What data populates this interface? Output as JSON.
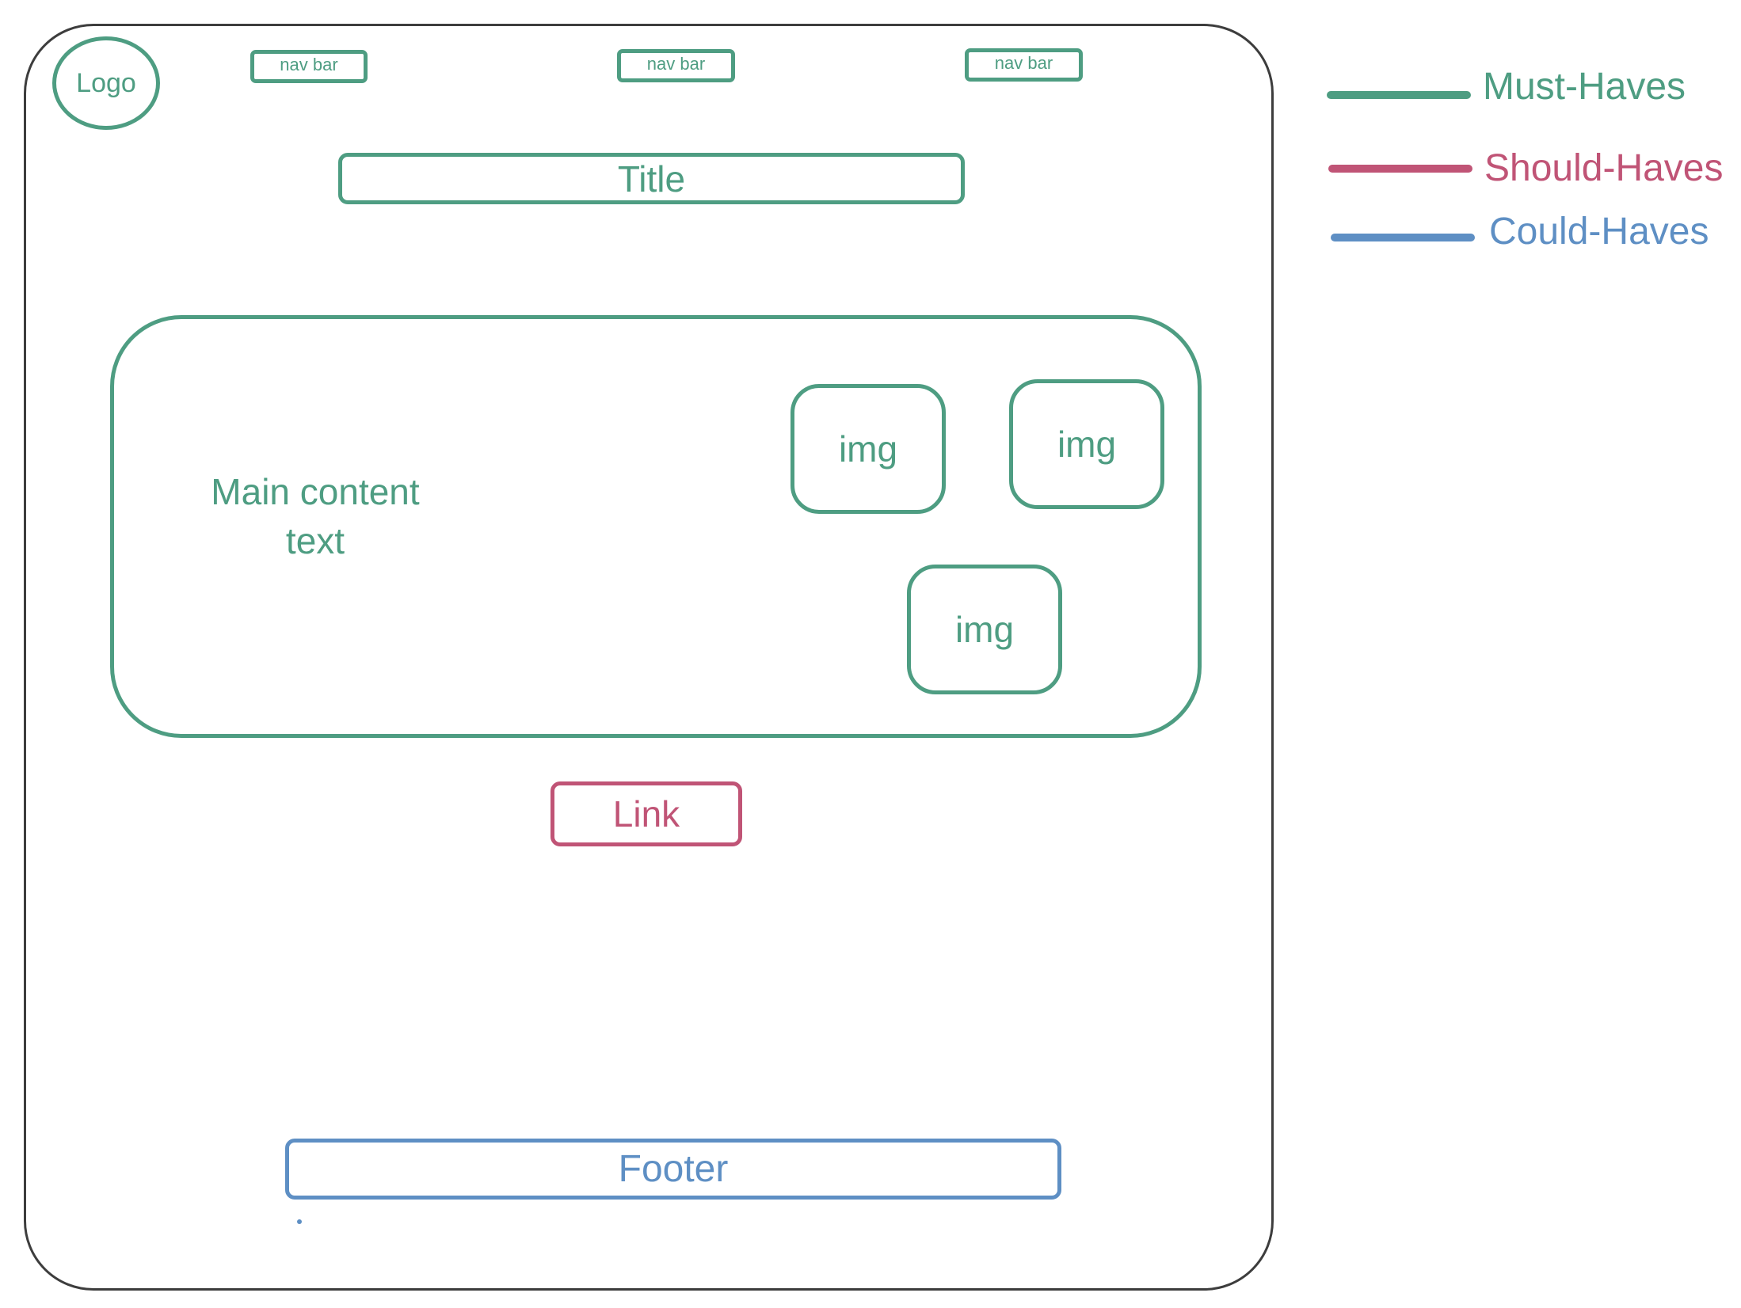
{
  "header": {
    "logo": "Logo",
    "nav_items": [
      "nav bar",
      "nav bar",
      "nav bar"
    ],
    "title": "Title"
  },
  "main": {
    "text": "Main content text",
    "images": [
      "img",
      "img",
      "img"
    ]
  },
  "link": "Link",
  "footer": "Footer",
  "legend": [
    {
      "label": "Must-Haves",
      "color": "#4e9d82"
    },
    {
      "label": "Should-Haves",
      "color": "#c05476"
    },
    {
      "label": "Could-Haves",
      "color": "#5e8fc4"
    }
  ],
  "colors": {
    "frame": "#3d3d3d",
    "must": "#4e9d82",
    "should": "#c05476",
    "could": "#5e8fc4"
  }
}
